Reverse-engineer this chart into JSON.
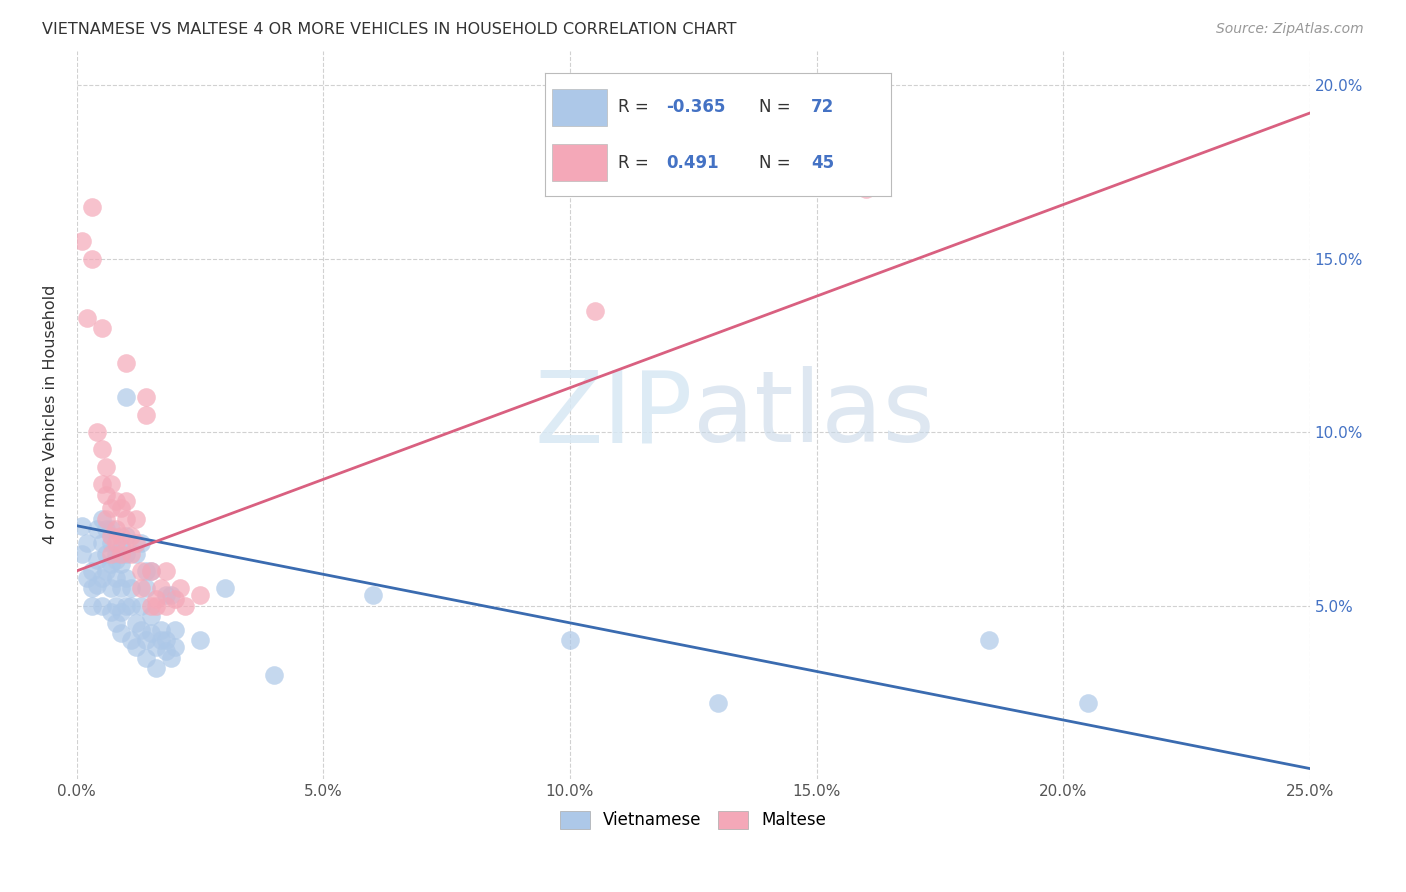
{
  "title": "VIETNAMESE VS MALTESE 4 OR MORE VEHICLES IN HOUSEHOLD CORRELATION CHART",
  "source": "Source: ZipAtlas.com",
  "ylabel": "4 or more Vehicles in Household",
  "xlim": [
    0.0,
    0.25
  ],
  "ylim": [
    0.0,
    0.21
  ],
  "xtick_labels": [
    "0.0%",
    "5.0%",
    "10.0%",
    "15.0%",
    "20.0%",
    "25.0%"
  ],
  "xtick_vals": [
    0.0,
    0.05,
    0.1,
    0.15,
    0.2,
    0.25
  ],
  "ytick_vals": [
    0.05,
    0.1,
    0.15,
    0.2
  ],
  "right_ytick_labels": [
    "5.0%",
    "10.0%",
    "15.0%",
    "20.0%"
  ],
  "watermark_zip": "ZIP",
  "watermark_atlas": "atlas",
  "legend_viet_r": "-0.365",
  "legend_viet_n": "72",
  "legend_malt_r": "0.491",
  "legend_malt_n": "45",
  "viet_color": "#adc8e8",
  "malt_color": "#f4a8b8",
  "viet_line_color": "#3a6bb0",
  "malt_line_color": "#d96080",
  "viet_scatter": [
    [
      0.001,
      0.073
    ],
    [
      0.001,
      0.065
    ],
    [
      0.002,
      0.068
    ],
    [
      0.002,
      0.058
    ],
    [
      0.003,
      0.06
    ],
    [
      0.003,
      0.055
    ],
    [
      0.003,
      0.05
    ],
    [
      0.004,
      0.072
    ],
    [
      0.004,
      0.063
    ],
    [
      0.004,
      0.056
    ],
    [
      0.005,
      0.075
    ],
    [
      0.005,
      0.068
    ],
    [
      0.005,
      0.058
    ],
    [
      0.005,
      0.05
    ],
    [
      0.006,
      0.065
    ],
    [
      0.006,
      0.072
    ],
    [
      0.006,
      0.06
    ],
    [
      0.007,
      0.068
    ],
    [
      0.007,
      0.062
    ],
    [
      0.007,
      0.055
    ],
    [
      0.007,
      0.072
    ],
    [
      0.007,
      0.048
    ],
    [
      0.008,
      0.063
    ],
    [
      0.008,
      0.058
    ],
    [
      0.008,
      0.05
    ],
    [
      0.008,
      0.045
    ],
    [
      0.008,
      0.065
    ],
    [
      0.009,
      0.048
    ],
    [
      0.009,
      0.062
    ],
    [
      0.009,
      0.067
    ],
    [
      0.009,
      0.055
    ],
    [
      0.009,
      0.042
    ],
    [
      0.01,
      0.11
    ],
    [
      0.01,
      0.065
    ],
    [
      0.01,
      0.058
    ],
    [
      0.01,
      0.07
    ],
    [
      0.01,
      0.05
    ],
    [
      0.011,
      0.04
    ],
    [
      0.011,
      0.05
    ],
    [
      0.011,
      0.055
    ],
    [
      0.012,
      0.045
    ],
    [
      0.012,
      0.038
    ],
    [
      0.012,
      0.065
    ],
    [
      0.013,
      0.05
    ],
    [
      0.013,
      0.043
    ],
    [
      0.013,
      0.068
    ],
    [
      0.014,
      0.06
    ],
    [
      0.014,
      0.055
    ],
    [
      0.014,
      0.04
    ],
    [
      0.014,
      0.035
    ],
    [
      0.015,
      0.06
    ],
    [
      0.015,
      0.047
    ],
    [
      0.015,
      0.042
    ],
    [
      0.016,
      0.038
    ],
    [
      0.016,
      0.032
    ],
    [
      0.017,
      0.043
    ],
    [
      0.017,
      0.04
    ],
    [
      0.018,
      0.053
    ],
    [
      0.018,
      0.04
    ],
    [
      0.018,
      0.037
    ],
    [
      0.019,
      0.035
    ],
    [
      0.019,
      0.053
    ],
    [
      0.02,
      0.043
    ],
    [
      0.02,
      0.038
    ],
    [
      0.025,
      0.04
    ],
    [
      0.03,
      0.055
    ],
    [
      0.04,
      0.03
    ],
    [
      0.06,
      0.053
    ],
    [
      0.1,
      0.04
    ],
    [
      0.13,
      0.022
    ],
    [
      0.185,
      0.04
    ],
    [
      0.205,
      0.022
    ]
  ],
  "malt_scatter": [
    [
      0.001,
      0.155
    ],
    [
      0.002,
      0.133
    ],
    [
      0.003,
      0.165
    ],
    [
      0.003,
      0.15
    ],
    [
      0.004,
      0.1
    ],
    [
      0.005,
      0.085
    ],
    [
      0.005,
      0.095
    ],
    [
      0.005,
      0.13
    ],
    [
      0.006,
      0.09
    ],
    [
      0.006,
      0.082
    ],
    [
      0.006,
      0.075
    ],
    [
      0.007,
      0.085
    ],
    [
      0.007,
      0.078
    ],
    [
      0.007,
      0.07
    ],
    [
      0.007,
      0.065
    ],
    [
      0.008,
      0.08
    ],
    [
      0.008,
      0.072
    ],
    [
      0.008,
      0.068
    ],
    [
      0.009,
      0.07
    ],
    [
      0.009,
      0.078
    ],
    [
      0.009,
      0.065
    ],
    [
      0.01,
      0.075
    ],
    [
      0.01,
      0.08
    ],
    [
      0.01,
      0.12
    ],
    [
      0.011,
      0.07
    ],
    [
      0.011,
      0.065
    ],
    [
      0.012,
      0.075
    ],
    [
      0.012,
      0.068
    ],
    [
      0.013,
      0.06
    ],
    [
      0.013,
      0.055
    ],
    [
      0.014,
      0.11
    ],
    [
      0.014,
      0.105
    ],
    [
      0.015,
      0.06
    ],
    [
      0.015,
      0.05
    ],
    [
      0.016,
      0.052
    ],
    [
      0.016,
      0.05
    ],
    [
      0.017,
      0.055
    ],
    [
      0.018,
      0.05
    ],
    [
      0.018,
      0.06
    ],
    [
      0.02,
      0.052
    ],
    [
      0.021,
      0.055
    ],
    [
      0.022,
      0.05
    ],
    [
      0.025,
      0.053
    ],
    [
      0.16,
      0.17
    ],
    [
      0.105,
      0.135
    ]
  ],
  "viet_trendline": [
    [
      0.0,
      0.073
    ],
    [
      0.25,
      0.003
    ]
  ],
  "malt_trendline": [
    [
      0.0,
      0.06
    ],
    [
      0.25,
      0.192
    ]
  ]
}
